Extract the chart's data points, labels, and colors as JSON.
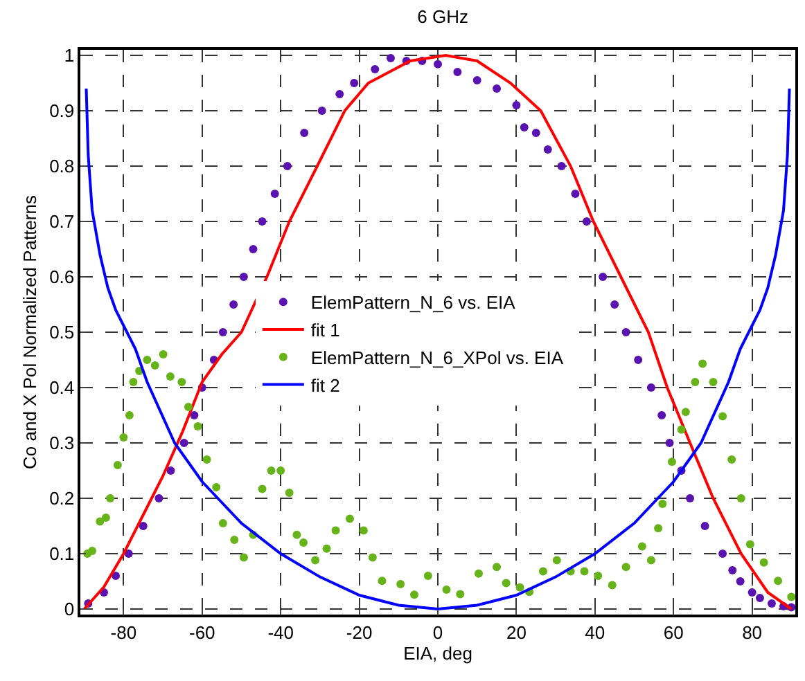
{
  "chart_data": {
    "type": "scatter",
    "title": "6 GHz",
    "xlabel": "EIA, deg",
    "ylabel": "Co and X Pol Normalized Patterns",
    "xlim": [
      -91,
      91
    ],
    "ylim": [
      -0.01,
      1.01
    ],
    "xticks": [
      -80,
      -60,
      -40,
      -20,
      0,
      20,
      40,
      60,
      80
    ],
    "yticks": [
      0,
      0.1,
      0.2,
      0.3,
      0.4,
      0.5,
      0.6,
      0.7,
      0.8,
      0.9,
      1
    ],
    "grid": true,
    "legend": "center",
    "series": [
      {
        "name": "ElemPattern_N_6 vs. EIA",
        "marker": "circle",
        "color": "#5a12b0",
        "x": [
          -89,
          -85,
          -82,
          -78.7,
          -75,
          -71,
          -68,
          -64.6,
          -62,
          -60,
          -57,
          -54.7,
          -52,
          -49.4,
          -47,
          -44.7,
          -41.5,
          -38.3,
          -34,
          -29.5,
          -25,
          -21.3,
          -16,
          -12,
          -8,
          -4,
          0,
          5,
          10,
          15,
          20,
          22,
          25,
          28,
          31.5,
          35,
          37.9,
          42,
          45,
          47.9,
          51,
          54.3,
          57,
          59,
          62,
          64.2,
          68,
          72.5,
          75,
          77,
          80,
          82,
          85,
          88,
          90
        ],
        "values": [
          0.01,
          0.03,
          0.06,
          0.1,
          0.15,
          0.2,
          0.25,
          0.3,
          0.35,
          0.4,
          0.45,
          0.5,
          0.55,
          0.6,
          0.65,
          0.7,
          0.75,
          0.8,
          0.86,
          0.9,
          0.93,
          0.95,
          0.975,
          0.995,
          0.99,
          0.99,
          0.984,
          0.97,
          0.955,
          0.94,
          0.91,
          0.87,
          0.86,
          0.83,
          0.8,
          0.75,
          0.7,
          0.6,
          0.55,
          0.5,
          0.45,
          0.4,
          0.35,
          0.3,
          0.25,
          0.2,
          0.15,
          0.1,
          0.07,
          0.05,
          0.03,
          0.02,
          0.01,
          0.005,
          0.003
        ]
      },
      {
        "name": "fit 1",
        "type": "line",
        "marker": "none",
        "color": "#ff0000",
        "x": [
          -90,
          -85,
          -80,
          -75,
          -70,
          -65,
          -60,
          -55,
          -50,
          -43.5,
          -37.8,
          -30.7,
          -23.7,
          -17.7,
          -7,
          2,
          10,
          18.5,
          26.2,
          33.8,
          39.6,
          46.6,
          53.6,
          58.4,
          64.2,
          70.1,
          77.2,
          84,
          90
        ],
        "values": [
          0,
          0.04,
          0.1,
          0.17,
          0.24,
          0.32,
          0.41,
          0.46,
          0.5,
          0.6,
          0.7,
          0.8,
          0.9,
          0.95,
          0.99,
          1,
          0.99,
          0.95,
          0.9,
          0.8,
          0.7,
          0.6,
          0.5,
          0.4,
          0.3,
          0.2,
          0.1,
          0.03,
          0
        ]
      },
      {
        "name": "ElemPattern_N_6_XPol vs. EIA",
        "marker": "circle",
        "color": "#66b31a",
        "x": [
          -89.2,
          -88,
          -86,
          -84.5,
          -83.4,
          -81.5,
          -80,
          -78.5,
          -77.5,
          -76,
          -74,
          -72,
          -69.9,
          -68.1,
          -65.2,
          -63.5,
          -61.1,
          -58.8,
          -56.4,
          -54.7,
          -51.8,
          -49.4,
          -47,
          -44.7,
          -42.4,
          -40,
          -37.8,
          -35.9,
          -34.2,
          -31.2,
          -28.3,
          -26,
          -22.4,
          -18.9,
          -16.6,
          -14.2,
          -9.5,
          -6,
          -2.5,
          2.2,
          5.7,
          10.4,
          15,
          17.4,
          20.9,
          23.3,
          26.8,
          30.3,
          33.8,
          37.3,
          40.8,
          44.4,
          47.9,
          52,
          54.3,
          56.1,
          57.2,
          59.6,
          62,
          63.1,
          65.5,
          67.4,
          70.1,
          72.5,
          74.8,
          77.2,
          79.5,
          83,
          86.6,
          90
        ],
        "values": [
          0.1,
          0.105,
          0.158,
          0.165,
          0.2,
          0.26,
          0.31,
          0.35,
          0.41,
          0.43,
          0.45,
          0.44,
          0.46,
          0.42,
          0.41,
          0.365,
          0.33,
          0.27,
          0.22,
          0.155,
          0.125,
          0.093,
          0.134,
          0.217,
          0.25,
          0.25,
          0.21,
          0.134,
          0.12,
          0.088,
          0.109,
          0.142,
          0.163,
          0.142,
          0.093,
          0.051,
          0.045,
          0.026,
          0.06,
          0.035,
          0.027,
          0.064,
          0.076,
          0.047,
          0.039,
          0.031,
          0.068,
          0.088,
          0.068,
          0.068,
          0.06,
          0.043,
          0.076,
          0.113,
          0.088,
          0.146,
          0.19,
          0.266,
          0.324,
          0.356,
          0.41,
          0.443,
          0.41,
          0.348,
          0.27,
          0.2,
          0.117,
          0.084,
          0.051,
          0.022
        ]
      },
      {
        "name": "fit 2",
        "type": "line",
        "marker": "none",
        "color": "#0000ff",
        "x": [
          -89.5,
          -89,
          -88,
          -86,
          -84,
          -82,
          -77,
          -74,
          -67,
          -60,
          -56,
          -50,
          -40,
          -30,
          -20,
          -10,
          0,
          10,
          20,
          30,
          40,
          50,
          56,
          60,
          67,
          74,
          77,
          82,
          84,
          86,
          88,
          89,
          89.5
        ],
        "values": [
          0.94,
          0.82,
          0.72,
          0.64,
          0.58,
          0.54,
          0.47,
          0.41,
          0.3,
          0.23,
          0.2,
          0.155,
          0.1,
          0.058,
          0.025,
          0.007,
          0,
          0.007,
          0.025,
          0.058,
          0.1,
          0.155,
          0.2,
          0.23,
          0.3,
          0.41,
          0.47,
          0.54,
          0.58,
          0.64,
          0.72,
          0.82,
          0.94
        ]
      }
    ]
  }
}
